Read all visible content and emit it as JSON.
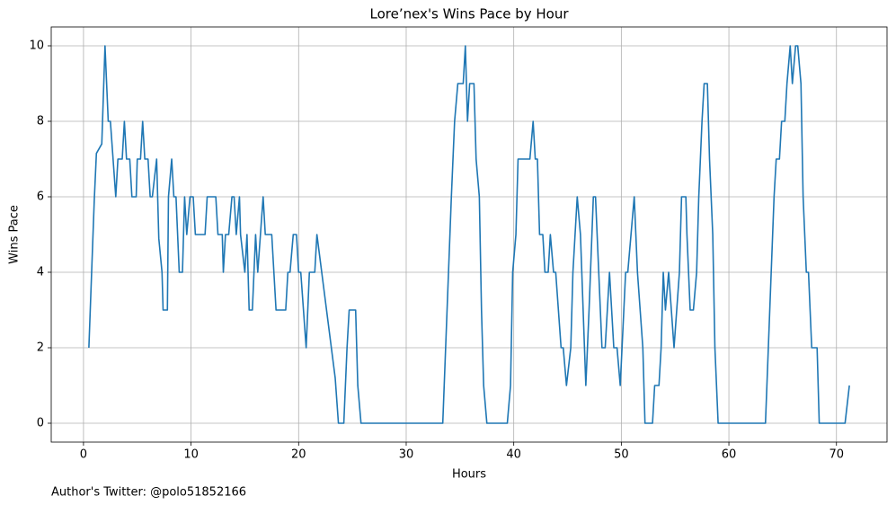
{
  "chart_data": {
    "type": "line",
    "title": "Lore’nex's Wins Pace by Hour",
    "x_label": "Hours",
    "y_label": "Wins Pace",
    "footnote": "Author's Twitter: @polo51852166",
    "color": "#1f77b4",
    "grid": true,
    "xlim": [
      -3.0,
      74.7
    ],
    "ylim": [
      -0.5,
      10.5
    ],
    "xticks": [
      0,
      10,
      20,
      30,
      40,
      50,
      60,
      70
    ],
    "yticks": [
      0,
      2,
      4,
      6,
      8,
      10
    ],
    "x": [
      0.5,
      1.0,
      1.2,
      1.7,
      2.0,
      2.3,
      2.5,
      3.0,
      3.2,
      3.6,
      3.8,
      4.0,
      4.3,
      4.5,
      4.9,
      5.0,
      5.3,
      5.5,
      5.7,
      6.0,
      6.2,
      6.4,
      6.8,
      7.0,
      7.3,
      7.4,
      7.8,
      7.9,
      8.2,
      8.4,
      8.6,
      8.9,
      9.2,
      9.4,
      9.6,
      9.9,
      10.2,
      10.4,
      10.9,
      11.3,
      11.5,
      12.0,
      12.3,
      12.5,
      12.9,
      13.0,
      13.2,
      13.5,
      13.8,
      14.0,
      14.2,
      14.5,
      14.6,
      15.0,
      15.2,
      15.4,
      15.7,
      16.0,
      16.2,
      16.5,
      16.7,
      16.9,
      17.5,
      17.9,
      18.8,
      19.0,
      19.2,
      19.5,
      19.8,
      20.0,
      20.2,
      20.7,
      21.0,
      21.5,
      21.7,
      23.4,
      23.7,
      24.2,
      24.5,
      24.7,
      25.3,
      25.5,
      25.8,
      33.4,
      33.8,
      34.2,
      34.5,
      34.8,
      35.3,
      35.5,
      35.7,
      35.9,
      36.3,
      36.5,
      36.8,
      37.0,
      37.2,
      37.5,
      39.4,
      39.7,
      39.9,
      40.2,
      40.4,
      41.5,
      41.8,
      42.0,
      42.2,
      42.4,
      42.7,
      42.9,
      43.2,
      43.4,
      43.7,
      43.9,
      44.4,
      44.6,
      44.9,
      45.3,
      45.5,
      45.9,
      46.2,
      46.7,
      47.0,
      47.4,
      47.6,
      47.9,
      48.2,
      48.5,
      48.9,
      49.3,
      49.6,
      49.9,
      50.4,
      50.6,
      50.9,
      51.2,
      51.5,
      52.0,
      52.2,
      52.9,
      53.1,
      53.5,
      53.7,
      53.9,
      54.1,
      54.4,
      54.9,
      55.4,
      55.6,
      56.0,
      56.1,
      56.4,
      56.7,
      57.0,
      57.2,
      57.5,
      57.7,
      58.0,
      58.2,
      58.5,
      58.7,
      59.0,
      63.4,
      63.8,
      64.2,
      64.4,
      64.7,
      64.9,
      65.2,
      65.4,
      65.7,
      65.9,
      66.2,
      66.4,
      66.7,
      66.9,
      67.2,
      67.4,
      67.7,
      68.2,
      68.4,
      70.8,
      71.2
    ],
    "values": [
      2,
      5.9,
      7.15,
      7.4,
      10,
      8,
      8,
      6,
      7,
      7,
      8,
      7,
      7,
      6,
      6,
      7,
      7,
      8,
      7,
      7,
      6,
      6,
      7,
      4.9,
      4,
      3,
      3,
      6,
      7,
      6,
      6,
      4,
      4,
      6,
      5,
      6,
      6,
      5,
      5,
      5,
      6,
      6,
      6,
      5,
      5,
      4,
      5,
      5,
      6,
      6,
      5,
      6,
      5,
      4,
      5,
      3,
      3,
      5,
      4,
      5.2,
      6,
      5,
      5,
      3,
      3,
      4,
      4,
      5,
      5,
      4,
      4,
      2,
      4,
      4,
      5,
      1.2,
      0,
      0,
      2,
      3,
      3,
      1,
      0,
      0,
      3,
      6,
      8,
      9,
      9,
      10,
      8,
      9,
      9,
      7,
      6,
      3,
      1,
      0,
      0,
      1,
      4,
      5,
      7,
      7,
      8,
      7,
      7,
      5,
      5,
      4,
      4,
      5,
      4,
      4,
      2,
      2,
      1,
      2,
      4,
      6,
      5,
      1,
      3,
      6,
      6,
      4,
      2,
      2,
      4,
      2,
      2,
      1,
      4,
      4,
      5,
      6,
      4,
      2,
      0,
      0,
      1,
      1,
      2,
      4,
      3,
      4,
      2,
      4,
      6,
      6,
      5,
      3,
      3,
      4,
      6,
      8,
      9,
      9,
      7,
      5,
      2,
      0,
      0,
      3,
      6,
      7,
      7,
      8,
      8,
      9,
      10,
      9,
      10,
      10,
      9,
      6,
      4,
      4,
      2,
      2,
      0,
      0,
      1
    ]
  }
}
